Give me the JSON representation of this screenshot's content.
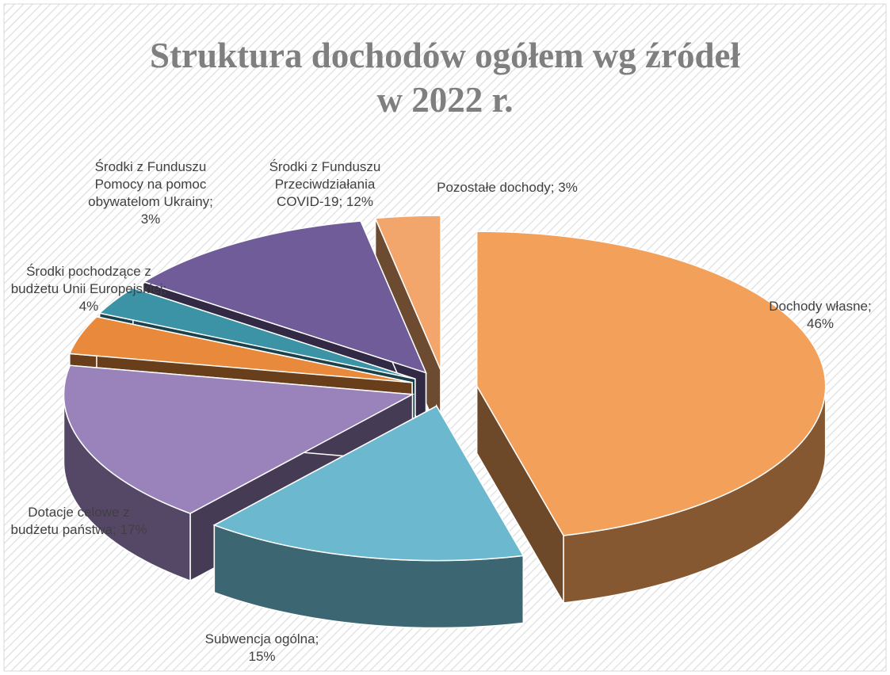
{
  "chart_data": {
    "type": "pie3d",
    "title": "Struktura dochodów ogółem wg źródeł\nw 2022 r.",
    "categories": [
      "Dochody własne;",
      "Subwencja ogólna;",
      "Dotacje celowe z budżetu państwa;",
      "Środki pochodzące z budżetu Unii Europejskiej;",
      "Środki z Funduszu Pomocy na pomoc obywatelom Ukrainy;",
      "Środki z Funduszu Przeciwdziałania COVID-19;",
      "Pozostałe dochody;"
    ],
    "values": [
      46,
      15,
      17,
      4,
      3,
      12,
      3
    ],
    "value_labels": [
      "46%",
      "15%",
      "17%",
      "4%",
      "3%",
      "12%",
      "3%"
    ],
    "colors": [
      "#f3a05a",
      "#6cb9cf",
      "#9a82bb",
      "#e9893b",
      "#3c93a6",
      "#6f5c98",
      "#f2a66c"
    ]
  }
}
